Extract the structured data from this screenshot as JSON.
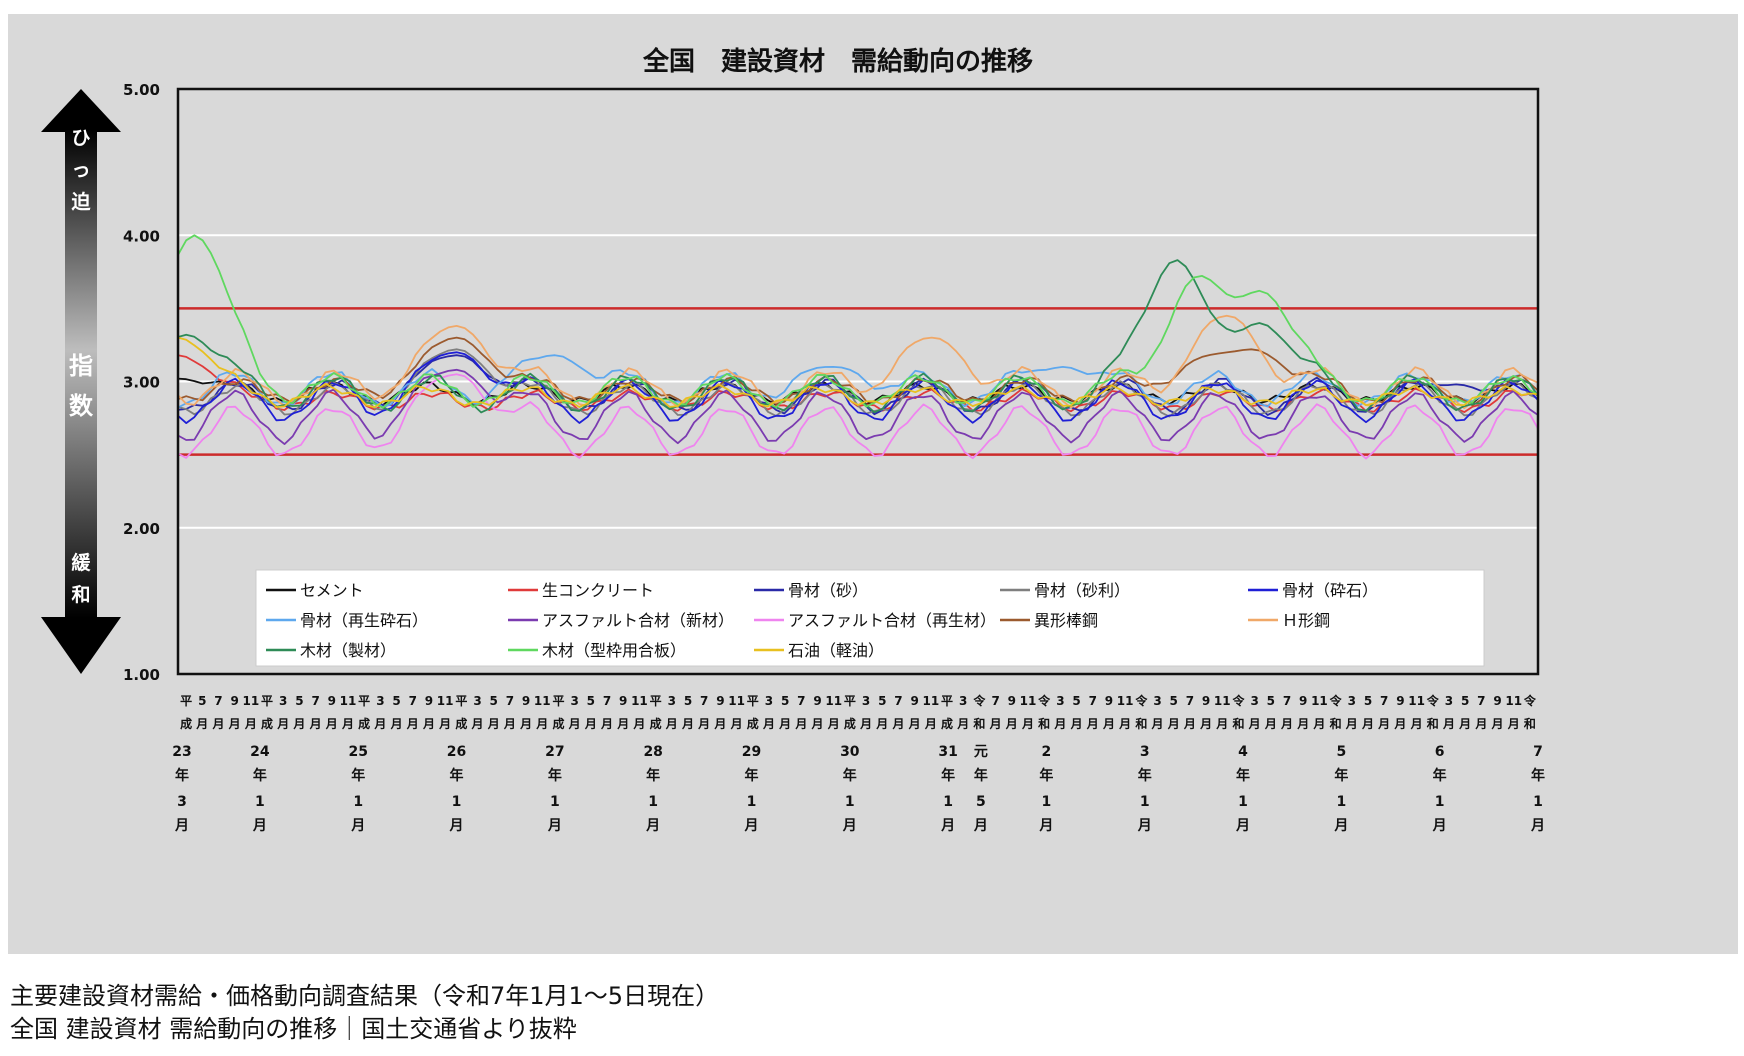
{
  "chart_data": {
    "type": "line",
    "title": "全国　建設資材　需給動向の推移",
    "y_axis": {
      "ylim": [
        1.0,
        5.0
      ],
      "ticks": [
        "1.00",
        "2.00",
        "3.00",
        "4.00",
        "5.00"
      ],
      "side_label_top": "ひっ迫",
      "side_label_mid": "指数",
      "side_label_bottom": "緩和"
    },
    "reference_lines": [
      3.5,
      2.5
    ],
    "grid": true,
    "x_axis": {
      "start": "平成23年3月",
      "end": "令和7年1月",
      "n_months": 167,
      "month_labels": [
        "平成",
        "5月",
        "7月",
        "9月",
        "11月",
        "平成",
        "3月",
        "5月",
        "7月",
        "9月",
        "11月",
        "平成",
        "3月",
        "5月",
        "7月",
        "9月",
        "11月",
        "平成",
        "3月",
        "5月",
        "7月",
        "9月",
        "11月",
        "平成",
        "3月",
        "5月",
        "7月",
        "9月",
        "11月",
        "平成",
        "3月",
        "5月",
        "7月",
        "9月",
        "11月",
        "平成",
        "3月",
        "5月",
        "7月",
        "9月",
        "11月",
        "平成",
        "3月",
        "5月",
        "7月",
        "9月",
        "11月",
        "平成",
        "3月",
        "令和",
        "7月",
        "9月",
        "11月",
        "令和",
        "3月",
        "5月",
        "7月",
        "9月",
        "11月",
        "令和",
        "3月",
        "5月",
        "7月",
        "9月",
        "11月",
        "令和",
        "3月",
        "5月",
        "7月",
        "9月",
        "11月",
        "令和",
        "3月",
        "5月",
        "7月",
        "9月",
        "11月",
        "令和",
        "3月",
        "5月",
        "7月",
        "9月",
        "11月",
        "令和"
      ],
      "year_labels": [
        {
          "year": "23",
          "unit": "年",
          "month": "3",
          "mu": "月"
        },
        {
          "year": "24",
          "unit": "年",
          "month": "1",
          "mu": "月"
        },
        {
          "year": "25",
          "unit": "年",
          "month": "1",
          "mu": "月"
        },
        {
          "year": "26",
          "unit": "年",
          "month": "1",
          "mu": "月"
        },
        {
          "year": "27",
          "unit": "年",
          "month": "1",
          "mu": "月"
        },
        {
          "year": "28",
          "unit": "年",
          "month": "1",
          "mu": "月"
        },
        {
          "year": "29",
          "unit": "年",
          "month": "1",
          "mu": "月"
        },
        {
          "year": "30",
          "unit": "年",
          "month": "1",
          "mu": "月"
        },
        {
          "year": "31",
          "unit": "年",
          "month": "1",
          "mu": "月"
        },
        {
          "year": "元",
          "unit": "年",
          "month": "5",
          "mu": "月"
        },
        {
          "year": "2",
          "unit": "年",
          "month": "1",
          "mu": "月"
        },
        {
          "year": "3",
          "unit": "年",
          "month": "1",
          "mu": "月"
        },
        {
          "year": "4",
          "unit": "年",
          "month": "1",
          "mu": "月"
        },
        {
          "year": "5",
          "unit": "年",
          "month": "1",
          "mu": "月"
        },
        {
          "year": "6",
          "unit": "年",
          "month": "1",
          "mu": "月"
        },
        {
          "year": "7",
          "unit": "年",
          "month": "1",
          "mu": "月"
        }
      ]
    },
    "legend_position": "bottom-inside",
    "series": [
      {
        "name": "セメント",
        "color": "#111111",
        "base": 2.92,
        "amp": 0.07,
        "spikes": [
          [
            0,
            3.02
          ]
        ]
      },
      {
        "name": "生コンクリート",
        "color": "#e03a3a",
        "base": 2.87,
        "amp": 0.07,
        "spikes": [
          [
            0,
            3.18
          ]
        ]
      },
      {
        "name": "骨材（砂）",
        "color": "#2a2aa8",
        "base": 2.9,
        "amp": 0.1,
        "spikes": [
          [
            34,
            3.18
          ],
          [
            156,
            2.98
          ]
        ]
      },
      {
        "name": "骨材（砂利）",
        "color": "#7f7f7f",
        "base": 2.88,
        "amp": 0.08,
        "spikes": [
          [
            34,
            3.22
          ]
        ]
      },
      {
        "name": "骨材（砕石）",
        "color": "#1f1fd6",
        "base": 2.87,
        "amp": 0.11,
        "spikes": [
          [
            34,
            3.2
          ]
        ]
      },
      {
        "name": "骨材（再生砕石）",
        "color": "#5ea8ee",
        "base": 2.95,
        "amp": 0.1,
        "spikes": [
          [
            46,
            3.18
          ],
          [
            80,
            3.1
          ],
          [
            108,
            3.1
          ]
        ]
      },
      {
        "name": "アスファルト合材（新材）",
        "color": "#7b3bb0",
        "base": 2.76,
        "amp": 0.17,
        "spikes": [
          [
            34,
            3.08
          ]
        ]
      },
      {
        "name": "アスファルト合材（再生材）",
        "color": "#ef84ef",
        "base": 2.66,
        "amp": 0.18,
        "spikes": [
          [
            34,
            3.05
          ]
        ]
      },
      {
        "name": "異形棒鋼",
        "color": "#9b5a2e",
        "base": 2.94,
        "amp": 0.08,
        "spikes": [
          [
            34,
            3.3
          ],
          [
            126,
            3.15
          ],
          [
            131,
            3.22
          ]
        ]
      },
      {
        "name": "Ｈ形鋼",
        "color": "#f0a868",
        "base": 2.96,
        "amp": 0.1,
        "spikes": [
          [
            34,
            3.38
          ],
          [
            92,
            3.3
          ],
          [
            128,
            3.45
          ]
        ]
      },
      {
        "name": "木材（製材）",
        "color": "#2e8b57",
        "base": 2.92,
        "amp": 0.09,
        "spikes": [
          [
            1,
            3.32
          ],
          [
            122,
            3.85
          ],
          [
            132,
            3.4
          ]
        ]
      },
      {
        "name": "木材（型枠用合板）",
        "color": "#5fd85f",
        "base": 2.94,
        "amp": 0.08,
        "spikes": [
          [
            2,
            4.0
          ],
          [
            125,
            3.75
          ],
          [
            132,
            3.62
          ]
        ]
      },
      {
        "name": "石油（軽油）",
        "color": "#e8c020",
        "base": 2.9,
        "amp": 0.06,
        "spikes": [
          [
            0,
            3.3
          ]
        ]
      }
    ]
  },
  "caption": {
    "line1": "主要建設資材需給・価格動向調査結果（令和7年1月1〜5日現在）",
    "line2": "全国 建設資材 需給動向の推移｜国土交通省より抜粋"
  },
  "colors": {
    "panel_bg": "#d9d9d9",
    "plot_bg": "#d9d9d9",
    "gridline": "#ffffff",
    "reference_line": "#cc2b2b"
  }
}
